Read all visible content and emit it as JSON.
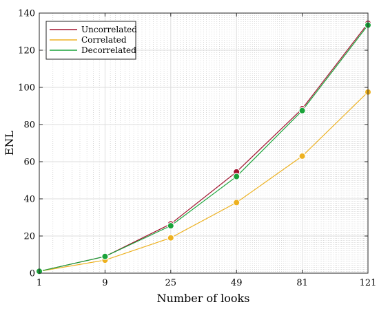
{
  "chart_data": {
    "type": "line",
    "title": "",
    "xlabel": "Number of looks",
    "ylabel": "ENL",
    "x_scale": "sqrt",
    "x": [
      1,
      9,
      25,
      49,
      81,
      121
    ],
    "xlim": [
      1,
      121
    ],
    "ylim": [
      0,
      140
    ],
    "xticks": [
      "1",
      "9",
      "25",
      "49",
      "81",
      "121"
    ],
    "yticks": [
      "0",
      "20",
      "40",
      "60",
      "80",
      "100",
      "120",
      "140"
    ],
    "grid": true,
    "legend_position": "top-left",
    "series": [
      {
        "name": "Uncorrelated",
        "color": "#a2142f",
        "values": [
          1,
          9,
          26.5,
          54.5,
          88.5,
          134.5
        ]
      },
      {
        "name": "Correlated",
        "color": "#edb120",
        "values": [
          1,
          7,
          19,
          38,
          63,
          97.5
        ]
      },
      {
        "name": "Decorrelated",
        "color": "#1aa33a",
        "values": [
          1,
          9,
          25.5,
          52,
          87.5,
          133.5
        ]
      }
    ]
  }
}
